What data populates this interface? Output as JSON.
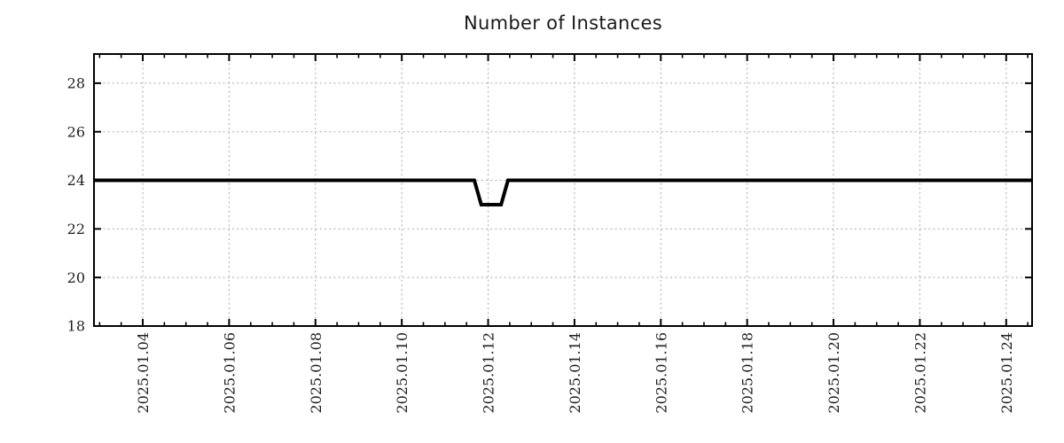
{
  "chart_data": {
    "type": "line",
    "title": "Number of Instances",
    "xlabel": "",
    "ylabel": "",
    "legend": "none",
    "grid": "dotted",
    "x_axis": {
      "unit": "day of 2025-01 (dates)",
      "min": 2.87,
      "max": 24.6,
      "major_tick_values": [
        4,
        6,
        8,
        10,
        12,
        14,
        16,
        18,
        20,
        22,
        24
      ],
      "major_tick_labels": [
        "2025.01.04",
        "2025.01.06",
        "2025.01.08",
        "2025.01.10",
        "2025.01.12",
        "2025.01.14",
        "2025.01.16",
        "2025.01.18",
        "2025.01.20",
        "2025.01.22",
        "2025.01.24"
      ],
      "minor_step": 0.5,
      "label_rotation_deg": -90
    },
    "y_axis": {
      "min": 18,
      "max": 29.2,
      "major_tick_values": [
        18,
        20,
        22,
        24,
        26,
        28
      ],
      "major_tick_labels": [
        "18",
        "20",
        "22",
        "24",
        "26",
        "28"
      ],
      "minor_step": null
    },
    "series": [
      {
        "name": "instances",
        "color": "#000000",
        "line_width": 4,
        "points": [
          [
            2.87,
            24
          ],
          [
            11.68,
            24
          ],
          [
            11.84,
            23
          ],
          [
            12.3,
            23
          ],
          [
            12.46,
            24
          ],
          [
            24.6,
            24
          ]
        ],
        "summary": "Constant at 24 instances, with a brief dip to 23 late on 2025-01-11 through the morning of 2025-01-12"
      }
    ],
    "style": {
      "line_color": "#000000",
      "grid_color": "#a9a9a9",
      "axis_color": "#000000",
      "text_color": "#1f1f1f",
      "background": "#ffffff"
    }
  }
}
